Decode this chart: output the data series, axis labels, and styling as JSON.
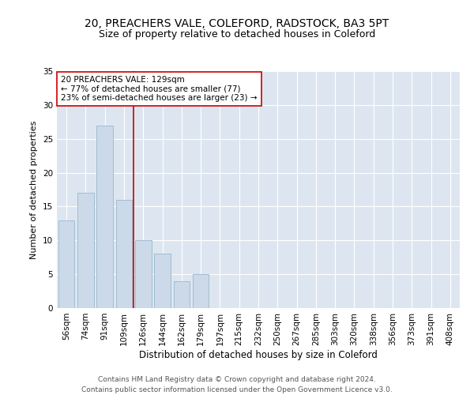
{
  "title1": "20, PREACHERS VALE, COLEFORD, RADSTOCK, BA3 5PT",
  "title2": "Size of property relative to detached houses in Coleford",
  "xlabel": "Distribution of detached houses by size in Coleford",
  "ylabel": "Number of detached properties",
  "categories": [
    "56sqm",
    "74sqm",
    "91sqm",
    "109sqm",
    "126sqm",
    "144sqm",
    "162sqm",
    "179sqm",
    "197sqm",
    "215sqm",
    "232sqm",
    "250sqm",
    "267sqm",
    "285sqm",
    "303sqm",
    "320sqm",
    "338sqm",
    "356sqm",
    "373sqm",
    "391sqm",
    "408sqm"
  ],
  "values": [
    13,
    17,
    27,
    16,
    10,
    8,
    4,
    5,
    0,
    0,
    0,
    0,
    0,
    0,
    0,
    0,
    0,
    0,
    0,
    0,
    0
  ],
  "bar_color": "#ccd9e8",
  "bar_edge_color": "#a0bdd4",
  "reference_line_color": "#cc0000",
  "reference_line_index": 4,
  "annotation_text": "20 PREACHERS VALE: 129sqm\n← 77% of detached houses are smaller (77)\n23% of semi-detached houses are larger (23) →",
  "annotation_box_facecolor": "white",
  "annotation_box_edgecolor": "#cc0000",
  "ylim": [
    0,
    35
  ],
  "yticks": [
    0,
    5,
    10,
    15,
    20,
    25,
    30,
    35
  ],
  "background_color": "#dde6f0",
  "grid_color": "white",
  "footer_text": "Contains HM Land Registry data © Crown copyright and database right 2024.\nContains public sector information licensed under the Open Government Licence v3.0.",
  "title1_fontsize": 10,
  "title2_fontsize": 9,
  "xlabel_fontsize": 8.5,
  "ylabel_fontsize": 8,
  "tick_fontsize": 7.5,
  "annotation_fontsize": 7.5,
  "footer_fontsize": 6.5
}
